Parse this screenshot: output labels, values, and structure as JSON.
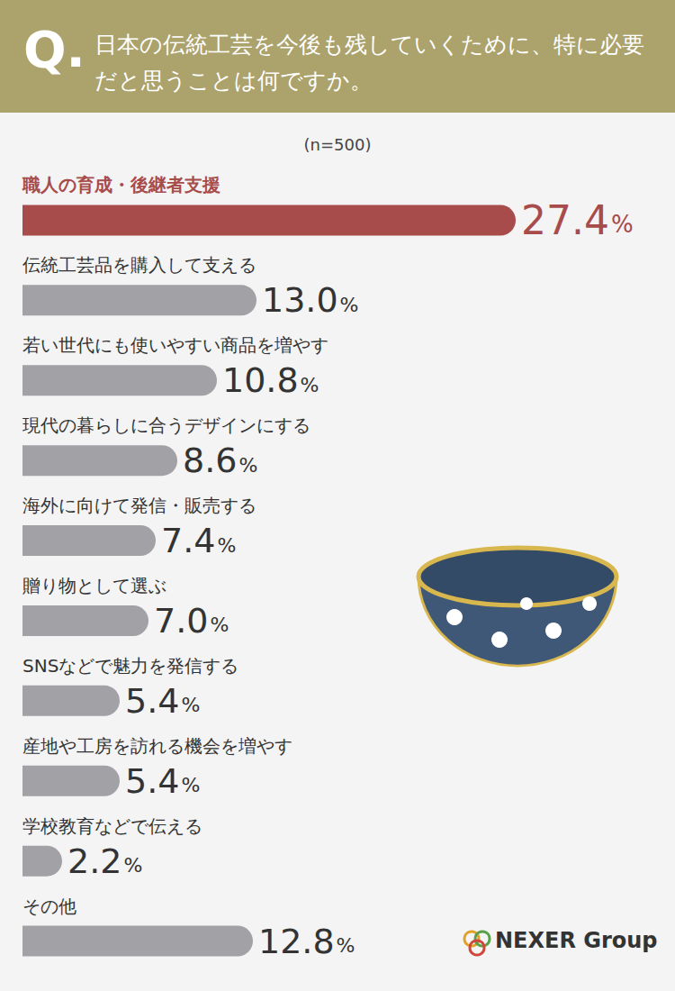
{
  "chart_data": {
    "type": "bar",
    "title": "日本の伝統工芸を今後も残していくために、特に必要だと思うことは何ですか。",
    "subtitle": "(n=500)",
    "annotations": [
      "Q.",
      "NEXER Group"
    ],
    "orientation": "horizontal",
    "categories": [
      "職人の育成・後継者支援",
      "伝統工芸品を購入して支える",
      "若い世代にも使いやすい商品を増やす",
      "現代の暮らしに合うデザインにする",
      "海外に向けて発信・販売する",
      "贈り物として選ぶ",
      "SNSなどで魅力を発信する",
      "産地や工房を訪れる機会を増やす",
      "学校教育などで伝える",
      "その他"
    ],
    "values": [
      27.4,
      13.0,
      10.8,
      8.6,
      7.4,
      7.0,
      5.4,
      5.4,
      2.2,
      12.8
    ],
    "value_labels": [
      "27.4%",
      "13.0%",
      "10.8%",
      "8.6%",
      "7.4%",
      "7.0%",
      "5.4%",
      "5.4%",
      "2.2%",
      "12.8%"
    ],
    "colors": [
      "#a84b4b",
      "#a1a1a6",
      "#a1a1a6",
      "#a1a1a6",
      "#a1a1a6",
      "#a1a1a6",
      "#a1a1a6",
      "#a1a1a6",
      "#a1a1a6",
      "#a1a1a6"
    ],
    "xlim": [
      0,
      35
    ],
    "xticks": [
      0,
      35
    ],
    "grid": false,
    "tick_labels": false,
    "data_labels": true
  }
}
